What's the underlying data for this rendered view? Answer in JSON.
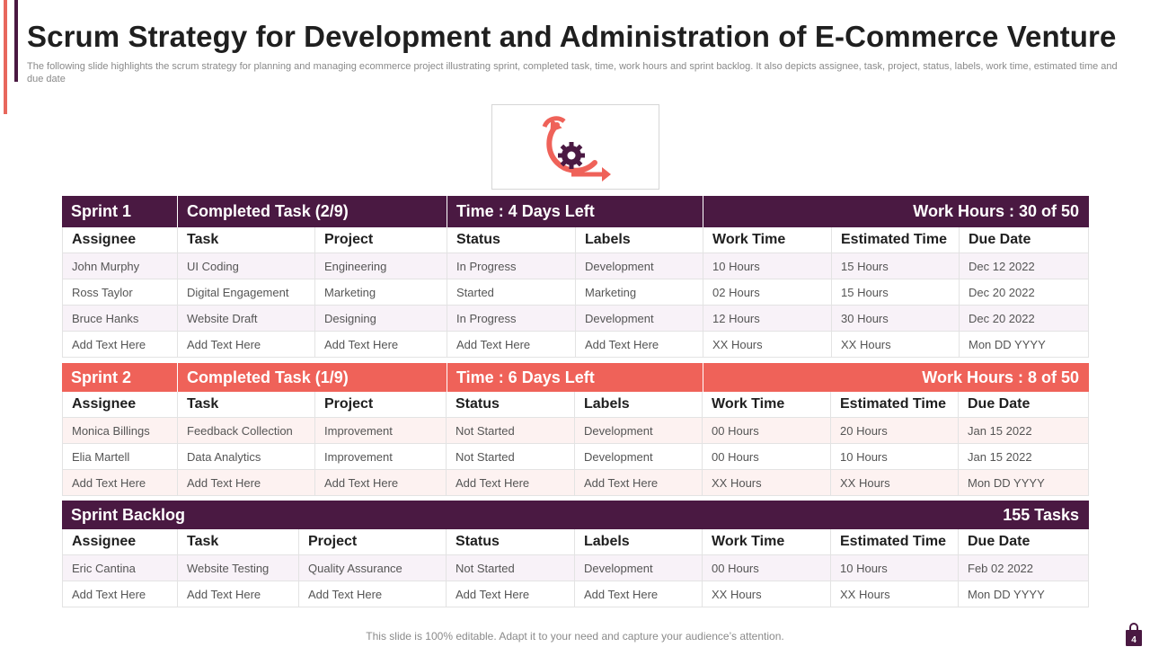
{
  "slide": {
    "title": "Scrum Strategy for Development and Administration of E-Commerce Venture",
    "subtitle": "The following slide highlights the scrum strategy for planning and managing ecommerce project illustrating sprint, completed task, time, work hours and sprint backlog. It also depicts assignee, task, project, status, labels, work time, estimated time and due date",
    "footer": "This slide is 100% editable. Adapt it to your need and capture your audience’s attention.",
    "page_number": "4",
    "colors": {
      "dark": "#4a1942",
      "accent": "#ef6259"
    },
    "icon": "scrum-cycle-gear-icon"
  },
  "columns": [
    "Assignee",
    "Task",
    "Project",
    "Status",
    "Labels",
    "Work Time",
    "Estimated Time",
    "Due Date"
  ],
  "sprint1": {
    "name": "Sprint 1",
    "completed": "Completed Task (2/9)",
    "time": "Time : 4 Days Left",
    "hours": "Work Hours : 30 of 50",
    "rows": [
      [
        "John Murphy",
        "UI Coding",
        "Engineering",
        "In Progress",
        "Development",
        "10 Hours",
        "15 Hours",
        "Dec 12 2022"
      ],
      [
        "Ross Taylor",
        "Digital Engagement",
        "Marketing",
        "Started",
        "Marketing",
        "02 Hours",
        "15 Hours",
        "Dec 20 2022"
      ],
      [
        "Bruce Hanks",
        "Website Draft",
        "Designing",
        "In Progress",
        "Development",
        "12 Hours",
        "30 Hours",
        "Dec 20 2022"
      ],
      [
        "Add Text Here",
        "Add Text Here",
        "Add Text Here",
        "Add Text Here",
        "Add Text Here",
        "XX  Hours",
        "XX  Hours",
        "Mon DD YYYY"
      ]
    ]
  },
  "sprint2": {
    "name": "Sprint 2",
    "completed": "Completed Task (1/9)",
    "time": "Time : 6 Days Left",
    "hours": "Work Hours : 8 of 50",
    "rows": [
      [
        "Monica Billings",
        "Feedback Collection",
        "Improvement",
        "Not Started",
        "Development",
        "00 Hours",
        "20 Hours",
        "Jan 15 2022"
      ],
      [
        "Elia Martell",
        "Data Analytics",
        "Improvement",
        "Not Started",
        "Development",
        "00 Hours",
        "10 Hours",
        "Jan 15 2022"
      ],
      [
        "Add Text Here",
        "Add Text Here",
        "Add Text Here",
        "Add Text Here",
        "Add Text Here",
        "XX  Hours",
        "XX  Hours",
        "Mon DD YYYY"
      ]
    ]
  },
  "backlog": {
    "name": "Sprint Backlog",
    "tasks": "155 Tasks",
    "rows": [
      [
        "Eric Cantina",
        "Website Testing",
        "Quality Assurance",
        "Not Started",
        "Development",
        "00 Hours",
        "10 Hours",
        "Feb 02 2022"
      ],
      [
        "Add Text Here",
        "Add Text Here",
        "Add Text Here",
        "Add Text Here",
        "Add Text Here",
        "XX  Hours",
        "XX  Hours",
        "Mon DD YYYY"
      ]
    ]
  }
}
